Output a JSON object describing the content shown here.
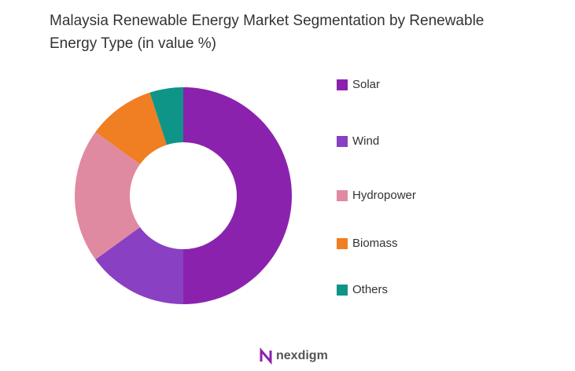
{
  "chart_data": {
    "type": "donut",
    "title": "Malaysia Renewable Energy Market Segmentation by Renewable Energy Type (in value %)",
    "categories": [
      "Solar",
      "Wind",
      "Hydropower",
      "Biomass",
      "Others"
    ],
    "values": [
      50,
      15,
      20,
      10,
      5
    ],
    "colors": [
      "#8b22ad",
      "#8a40c2",
      "#e08aa1",
      "#f07e22",
      "#0f9488"
    ],
    "legend": "right"
  },
  "watermark": "nexdigm"
}
